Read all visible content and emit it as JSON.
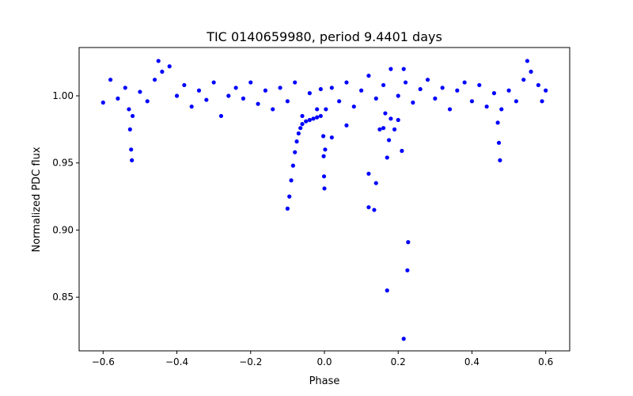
{
  "chart_data": {
    "type": "scatter",
    "title": "TIC 0140659980, period 9.4401 days",
    "xlabel": "Phase",
    "ylabel": "Normalized PDC flux",
    "xlim": [
      -0.665,
      0.665
    ],
    "ylim": [
      0.81,
      1.036
    ],
    "xticks": [
      -0.6,
      -0.4,
      -0.2,
      0.0,
      0.2,
      0.4,
      0.6
    ],
    "xtick_labels": [
      "−0.6",
      "−0.4",
      "−0.2",
      "0.0",
      "0.2",
      "0.4",
      "0.6"
    ],
    "yticks": [
      0.85,
      0.9,
      0.95,
      1.0
    ],
    "ytick_labels": [
      "0.85",
      "0.90",
      "0.95",
      "1.00"
    ],
    "grid": false,
    "marker_color": "#0000ff",
    "series": [
      {
        "name": "flux",
        "points": [
          [
            -0.6,
            0.995
          ],
          [
            -0.58,
            1.012
          ],
          [
            -0.56,
            0.998
          ],
          [
            -0.54,
            1.006
          ],
          [
            -0.53,
            0.99
          ],
          [
            -0.527,
            0.975
          ],
          [
            -0.524,
            0.96
          ],
          [
            -0.522,
            0.952
          ],
          [
            -0.52,
            0.985
          ],
          [
            -0.5,
            1.003
          ],
          [
            -0.48,
            0.996
          ],
          [
            -0.46,
            1.012
          ],
          [
            -0.45,
            1.026
          ],
          [
            -0.44,
            1.018
          ],
          [
            -0.42,
            1.022
          ],
          [
            -0.4,
            1.0
          ],
          [
            -0.38,
            1.008
          ],
          [
            -0.36,
            0.992
          ],
          [
            -0.34,
            1.004
          ],
          [
            -0.32,
            0.997
          ],
          [
            -0.3,
            1.01
          ],
          [
            -0.28,
            0.985
          ],
          [
            -0.26,
            1.0
          ],
          [
            -0.24,
            1.006
          ],
          [
            -0.22,
            0.998
          ],
          [
            -0.2,
            1.01
          ],
          [
            -0.18,
            0.994
          ],
          [
            -0.16,
            1.004
          ],
          [
            -0.14,
            0.99
          ],
          [
            -0.12,
            1.006
          ],
          [
            -0.1,
            0.996
          ],
          [
            -0.08,
            1.01
          ],
          [
            -0.06,
            0.985
          ],
          [
            -0.04,
            1.002
          ],
          [
            -0.02,
            0.99
          ],
          [
            -0.01,
            1.005
          ],
          [
            -0.1,
            0.916
          ],
          [
            -0.095,
            0.925
          ],
          [
            -0.09,
            0.937
          ],
          [
            -0.085,
            0.948
          ],
          [
            -0.08,
            0.958
          ],
          [
            -0.075,
            0.966
          ],
          [
            -0.07,
            0.972
          ],
          [
            -0.065,
            0.976
          ],
          [
            -0.06,
            0.979
          ],
          [
            -0.05,
            0.981
          ],
          [
            -0.04,
            0.982
          ],
          [
            -0.03,
            0.983
          ],
          [
            -0.02,
            0.984
          ],
          [
            -0.01,
            0.985
          ],
          [
            -0.003,
            0.97
          ],
          [
            -0.002,
            0.955
          ],
          [
            -0.001,
            0.94
          ],
          [
            0.0,
            0.931
          ],
          [
            0.002,
            0.96
          ],
          [
            0.004,
            0.99
          ],
          [
            0.02,
            0.969
          ],
          [
            0.06,
            0.978
          ],
          [
            0.02,
            1.006
          ],
          [
            0.04,
            0.996
          ],
          [
            0.06,
            1.01
          ],
          [
            0.08,
            0.992
          ],
          [
            0.1,
            1.004
          ],
          [
            0.12,
            1.015
          ],
          [
            0.14,
            0.998
          ],
          [
            0.16,
            1.008
          ],
          [
            0.18,
            1.02
          ],
          [
            0.2,
            1.0
          ],
          [
            0.22,
            1.01
          ],
          [
            0.24,
            0.995
          ],
          [
            0.26,
            1.005
          ],
          [
            0.28,
            1.012
          ],
          [
            0.3,
            0.998
          ],
          [
            0.32,
            1.006
          ],
          [
            0.34,
            0.99
          ],
          [
            0.36,
            1.004
          ],
          [
            0.38,
            1.01
          ],
          [
            0.4,
            0.996
          ],
          [
            0.42,
            1.008
          ],
          [
            0.44,
            0.992
          ],
          [
            0.46,
            1.002
          ],
          [
            0.12,
            0.942
          ],
          [
            0.12,
            0.917
          ],
          [
            0.135,
            0.915
          ],
          [
            0.14,
            0.935
          ],
          [
            0.15,
            0.975
          ],
          [
            0.16,
            0.976
          ],
          [
            0.165,
            0.987
          ],
          [
            0.17,
            0.954
          ],
          [
            0.175,
            0.967
          ],
          [
            0.18,
            0.983
          ],
          [
            0.19,
            0.975
          ],
          [
            0.2,
            0.982
          ],
          [
            0.21,
            0.959
          ],
          [
            0.215,
            1.02
          ],
          [
            0.17,
            0.855
          ],
          [
            0.225,
            0.87
          ],
          [
            0.227,
            0.891
          ],
          [
            0.215,
            0.819
          ],
          [
            0.47,
            0.98
          ],
          [
            0.473,
            0.965
          ],
          [
            0.476,
            0.952
          ],
          [
            0.48,
            0.99
          ],
          [
            0.5,
            1.004
          ],
          [
            0.52,
            0.996
          ],
          [
            0.54,
            1.012
          ],
          [
            0.55,
            1.026
          ],
          [
            0.56,
            1.018
          ],
          [
            0.58,
            1.008
          ],
          [
            0.59,
            0.996
          ],
          [
            0.6,
            1.004
          ]
        ]
      }
    ]
  }
}
